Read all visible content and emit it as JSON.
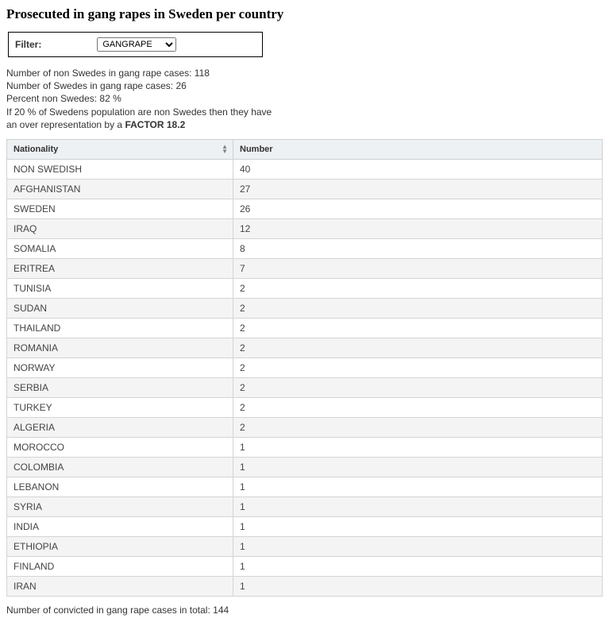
{
  "title": "Prosecuted in gang rapes in Sweden per country",
  "filter": {
    "label": "Filter:",
    "selected": "GANGRAPE",
    "options": [
      "GANGRAPE"
    ]
  },
  "stats": {
    "line1": "Number of non Swedes in gang rape cases: 118",
    "line2": "Number of Swedes in gang rape cases: 26",
    "line3": "Percent non Swedes: 82 %",
    "line4": "If 20 % of Swedens population are non Swedes then they have",
    "line5_prefix": "an over representation by a ",
    "line5_bold": "FACTOR 18.2"
  },
  "table": {
    "columns": [
      "Nationality",
      "Number"
    ],
    "rows": [
      [
        "NON SWEDISH",
        "40"
      ],
      [
        "AFGHANISTAN",
        "27"
      ],
      [
        "SWEDEN",
        "26"
      ],
      [
        "IRAQ",
        "12"
      ],
      [
        "SOMALIA",
        "8"
      ],
      [
        "ERITREA",
        "7"
      ],
      [
        "TUNISIA",
        "2"
      ],
      [
        "SUDAN",
        "2"
      ],
      [
        "THAILAND",
        "2"
      ],
      [
        "ROMANIA",
        "2"
      ],
      [
        "NORWAY",
        "2"
      ],
      [
        "SERBIA",
        "2"
      ],
      [
        "TURKEY",
        "2"
      ],
      [
        "ALGERIA",
        "2"
      ],
      [
        "MOROCCO",
        "1"
      ],
      [
        "COLOMBIA",
        "1"
      ],
      [
        "LEBANON",
        "1"
      ],
      [
        "SYRIA",
        "1"
      ],
      [
        "INDIA",
        "1"
      ],
      [
        "ETHIOPIA",
        "1"
      ],
      [
        "FINLAND",
        "1"
      ],
      [
        "IRAN",
        "1"
      ]
    ]
  },
  "footer": "Number of convicted in gang rape cases in total: 144"
}
